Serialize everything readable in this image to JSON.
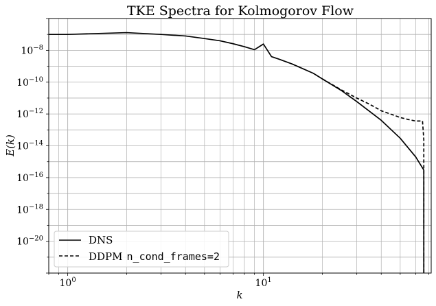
{
  "chart_data": {
    "type": "line",
    "title": "TKE Spectra for Kolmogorov Flow",
    "xlabel": "k",
    "ylabel": "E(k)",
    "xscale": "log",
    "yscale": "log",
    "xlim": [
      0.8,
      72
    ],
    "ylim": [
      1e-22,
      1e-06
    ],
    "grid": true,
    "legend_position": "lower-left",
    "x_ticks": [
      {
        "value": 1,
        "base": "10",
        "exp": "0"
      },
      {
        "value": 10,
        "base": "10",
        "exp": "1"
      }
    ],
    "y_ticks": [
      {
        "value": 1e-08,
        "base": "10",
        "exp": "−8"
      },
      {
        "value": 1e-10,
        "base": "10",
        "exp": "−10"
      },
      {
        "value": 1e-12,
        "base": "10",
        "exp": "−12"
      },
      {
        "value": 1e-14,
        "base": "10",
        "exp": "−14"
      },
      {
        "value": 1e-16,
        "base": "10",
        "exp": "−16"
      },
      {
        "value": 1e-18,
        "base": "10",
        "exp": "−18"
      },
      {
        "value": 1e-20,
        "base": "10",
        "exp": "−20"
      }
    ],
    "series": [
      {
        "name": "DNS",
        "style": "solid",
        "points": [
          [
            0.8,
            1e-07
          ],
          [
            1,
            1e-07
          ],
          [
            2,
            1.3e-07
          ],
          [
            3,
            1e-07
          ],
          [
            4,
            8e-08
          ],
          [
            5,
            5.5e-08
          ],
          [
            6,
            4e-08
          ],
          [
            7,
            2.6e-08
          ],
          [
            8,
            1.7e-08
          ],
          [
            9,
            1.1e-08
          ],
          [
            10,
            2.5e-08
          ],
          [
            11,
            4e-09
          ],
          [
            12,
            2.8e-09
          ],
          [
            14,
            1.4e-09
          ],
          [
            16,
            6.8e-10
          ],
          [
            18,
            3.6e-10
          ],
          [
            20,
            1.6e-10
          ],
          [
            25,
            3e-11
          ],
          [
            30,
            6e-12
          ],
          [
            40,
            4e-13
          ],
          [
            50,
            3e-14
          ],
          [
            60,
            2e-15
          ],
          [
            66,
            3e-16
          ],
          [
            66,
            1e-22
          ]
        ]
      },
      {
        "name": "DDPM",
        "legend_suffix": "n_cond_frames=2",
        "style": "dashed",
        "points": [
          [
            20,
            1.6e-10
          ],
          [
            25,
            3.3e-11
          ],
          [
            30,
            1e-11
          ],
          [
            35,
            4e-12
          ],
          [
            40,
            1.6e-12
          ],
          [
            50,
            6e-13
          ],
          [
            55,
            4.5e-13
          ],
          [
            60,
            3.6e-13
          ],
          [
            65,
            3.6e-13
          ],
          [
            66,
            2.5e-14
          ],
          [
            66,
            1e-22
          ]
        ]
      }
    ]
  }
}
